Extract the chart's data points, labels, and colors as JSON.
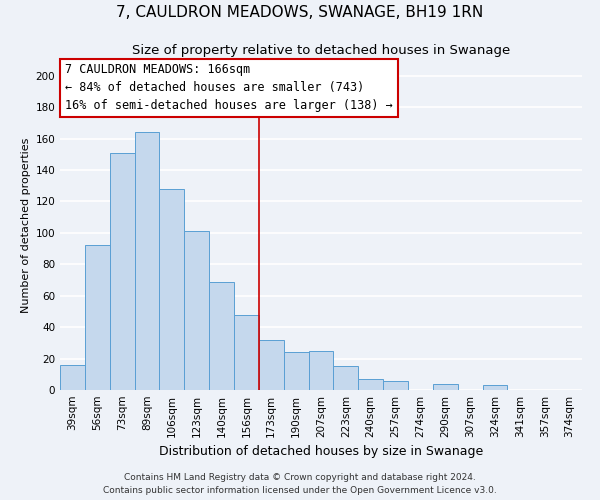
{
  "title": "7, CAULDRON MEADOWS, SWANAGE, BH19 1RN",
  "subtitle": "Size of property relative to detached houses in Swanage",
  "xlabel": "Distribution of detached houses by size in Swanage",
  "ylabel": "Number of detached properties",
  "bar_labels": [
    "39sqm",
    "56sqm",
    "73sqm",
    "89sqm",
    "106sqm",
    "123sqm",
    "140sqm",
    "156sqm",
    "173sqm",
    "190sqm",
    "207sqm",
    "223sqm",
    "240sqm",
    "257sqm",
    "274sqm",
    "290sqm",
    "307sqm",
    "324sqm",
    "341sqm",
    "357sqm",
    "374sqm"
  ],
  "bar_values": [
    16,
    92,
    151,
    164,
    128,
    101,
    69,
    48,
    32,
    24,
    25,
    15,
    7,
    6,
    0,
    4,
    0,
    3,
    0,
    0,
    0
  ],
  "bar_color": "#c5d8ed",
  "bar_edge_color": "#5a9fd4",
  "vline_color": "#cc0000",
  "annotation_line1": "7 CAULDRON MEADOWS: 166sqm",
  "annotation_line2": "← 84% of detached houses are smaller (743)",
  "annotation_line3": "16% of semi-detached houses are larger (138) →",
  "annotation_box_color": "#cc0000",
  "annotation_box_fill": "#ffffff",
  "ylim": [
    0,
    210
  ],
  "yticks": [
    0,
    20,
    40,
    60,
    80,
    100,
    120,
    140,
    160,
    180,
    200
  ],
  "footer_line1": "Contains HM Land Registry data © Crown copyright and database right 2024.",
  "footer_line2": "Contains public sector information licensed under the Open Government Licence v3.0.",
  "background_color": "#eef2f8",
  "grid_color": "#ffffff",
  "title_fontsize": 11,
  "subtitle_fontsize": 9.5,
  "xlabel_fontsize": 9,
  "ylabel_fontsize": 8,
  "tick_fontsize": 7.5,
  "footer_fontsize": 6.5,
  "annotation_fontsize": 8.5
}
